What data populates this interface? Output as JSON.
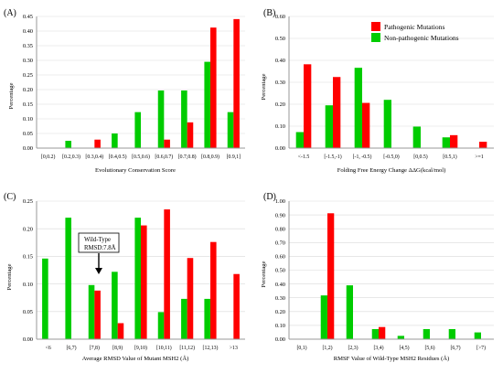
{
  "colors": {
    "pathogenic": "#ff0000",
    "nonpathogenic": "#00cc00"
  },
  "legend": {
    "pathogenic": "Pathogenic Mutations",
    "nonpathogenic": "Non-pathogenic Mutations"
  },
  "chart_data": [
    {
      "panel": "(A)",
      "type": "bar",
      "ylabel": "Percentage",
      "xlabel": "Evolutionary Conservation Score",
      "ylim": [
        0,
        0.45
      ],
      "yticks": [
        "0.00",
        "0.05",
        "0.10",
        "0.15",
        "0.20",
        "0.25",
        "0.30",
        "0.35",
        "0.40",
        "0.45"
      ],
      "categories": [
        "[0,0.2)",
        "[0.2,0.3)",
        "[0.3,0.4)",
        "[0.4,0.5)",
        "[0.5,0.6)",
        "[0.6,0.7)",
        "[0.7,0.8)",
        "[0.8,0.9)",
        "[0.9,1]"
      ],
      "series": [
        {
          "name": "Non-pathogenic Mutations",
          "values": [
            0,
            0.025,
            0,
            0.05,
            0.123,
            0.197,
            0.197,
            0.295,
            0.123
          ]
        },
        {
          "name": "Pathogenic Mutations",
          "values": [
            0,
            0,
            0.029,
            0,
            0,
            0.029,
            0.088,
            0.412,
            0.441
          ]
        }
      ]
    },
    {
      "panel": "(B)",
      "type": "bar",
      "ylabel": "Percentage",
      "xlabel": "Folding Free Energy Change ΔΔG(kcal/mol)",
      "ylim": [
        0,
        0.6
      ],
      "yticks": [
        "0.00",
        "0.10",
        "0.20",
        "0.30",
        "0.40",
        "0.50",
        "0.60"
      ],
      "categories": [
        "<-1.5",
        "[-1.5,-1)",
        "[-1, -0.5)",
        "[-0.5,0)",
        "[0,0.5)",
        "[0.5,1)",
        ">=1"
      ],
      "series": [
        {
          "name": "Non-pathogenic Mutations",
          "values": [
            0.073,
            0.195,
            0.366,
            0.22,
            0.098,
            0.049,
            0
          ]
        },
        {
          "name": "Pathogenic Mutations",
          "values": [
            0.382,
            0.324,
            0.206,
            0,
            0,
            0.059,
            0.029
          ]
        }
      ],
      "legend_position": "top-right"
    },
    {
      "panel": "(C)",
      "type": "bar",
      "ylabel": "Percentage",
      "xlabel": "Average RMSD Value of Mutant MSH2 (Å)",
      "ylim": [
        0,
        0.25
      ],
      "yticks": [
        "0.00",
        "0.05",
        "0.10",
        "0.15",
        "0.20",
        "0.25"
      ],
      "categories": [
        "<6",
        "[6,7)",
        "[7,8)",
        "[8,9)",
        "[9,10)",
        "[10,11)",
        "[11,12)",
        "[12,13)",
        ">13"
      ],
      "series": [
        {
          "name": "Non-pathogenic Mutations",
          "values": [
            0.146,
            0.22,
            0.098,
            0.122,
            0.22,
            0.049,
            0.073,
            0.073,
            0
          ]
        },
        {
          "name": "Pathogenic Mutations",
          "values": [
            0,
            0,
            0.088,
            0.029,
            0.206,
            0.235,
            0.147,
            0.176,
            0.118
          ]
        }
      ],
      "annotation": {
        "line1": "Wild-Type",
        "line2": "RMSD:7.8Å",
        "category": "[7,8)"
      }
    },
    {
      "panel": "(D)",
      "type": "bar",
      "ylabel": "Percentage",
      "xlabel": "RMSF Value of Wild-Type MSH2 Residues (Å)",
      "ylim": [
        0,
        1.0
      ],
      "yticks": [
        "0.00",
        "0.10",
        "0.20",
        "0.30",
        "0.40",
        "0.50",
        "0.60",
        "0.70",
        "0.80",
        "0.90",
        "1.00"
      ],
      "categories": [
        "[0,1)",
        "[1,2)",
        "[2,3)",
        "[3,4)",
        "[4,5)",
        "[5,6)",
        "[6,7)",
        "[>7)"
      ],
      "series": [
        {
          "name": "Non-pathogenic Mutations",
          "values": [
            0,
            0.317,
            0.39,
            0.073,
            0.024,
            0.073,
            0.073,
            0.049
          ]
        },
        {
          "name": "Pathogenic Mutations",
          "values": [
            0,
            0.912,
            0,
            0.088,
            0,
            0,
            0,
            0
          ]
        }
      ]
    }
  ]
}
